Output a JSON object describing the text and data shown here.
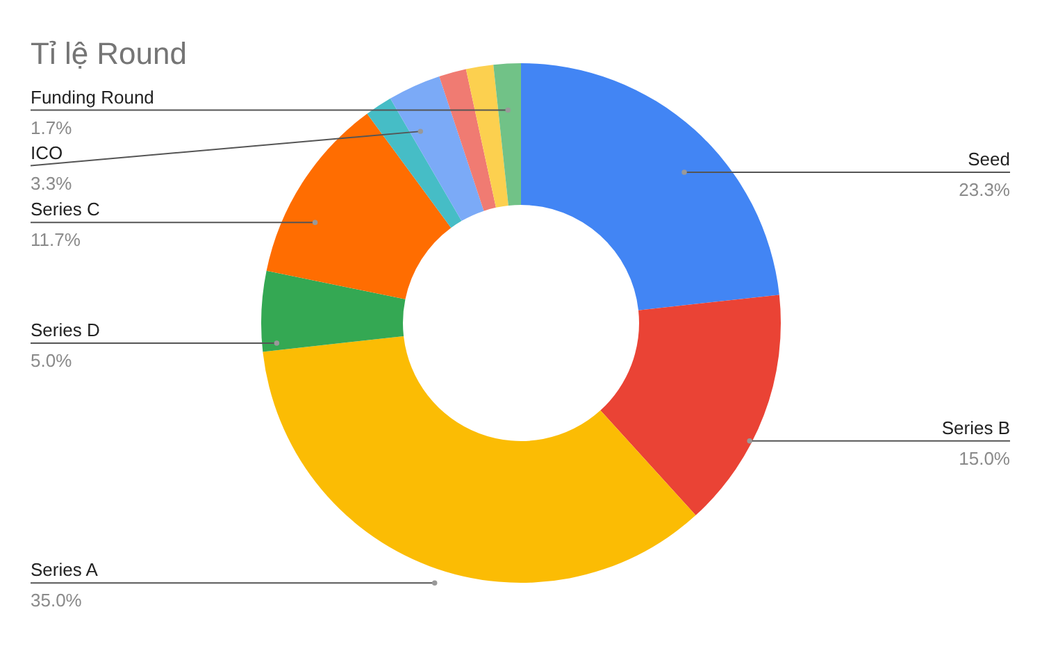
{
  "chart_data": {
    "type": "donut",
    "title": "Tỉ lệ Round",
    "categories": [
      "Seed",
      "Series B",
      "Series A",
      "Series D",
      "Series C",
      null,
      "ICO",
      null,
      null,
      "Funding Round"
    ],
    "values": [
      23.3,
      15.0,
      35.0,
      5.0,
      11.7,
      1.7,
      3.3,
      1.7,
      1.7,
      1.7
    ],
    "value_labels": [
      "23.3%",
      "15.0%",
      "35.0%",
      "5.0%",
      "11.7%",
      null,
      "3.3%",
      null,
      null,
      "1.7%"
    ],
    "colors": [
      "#4285f4",
      "#ea4335",
      "#fbbc04",
      "#34a853",
      "#ff6d01",
      "#46bdc6",
      "#7baaf7",
      "#f07b72",
      "#fcd04f",
      "#71c287"
    ]
  }
}
